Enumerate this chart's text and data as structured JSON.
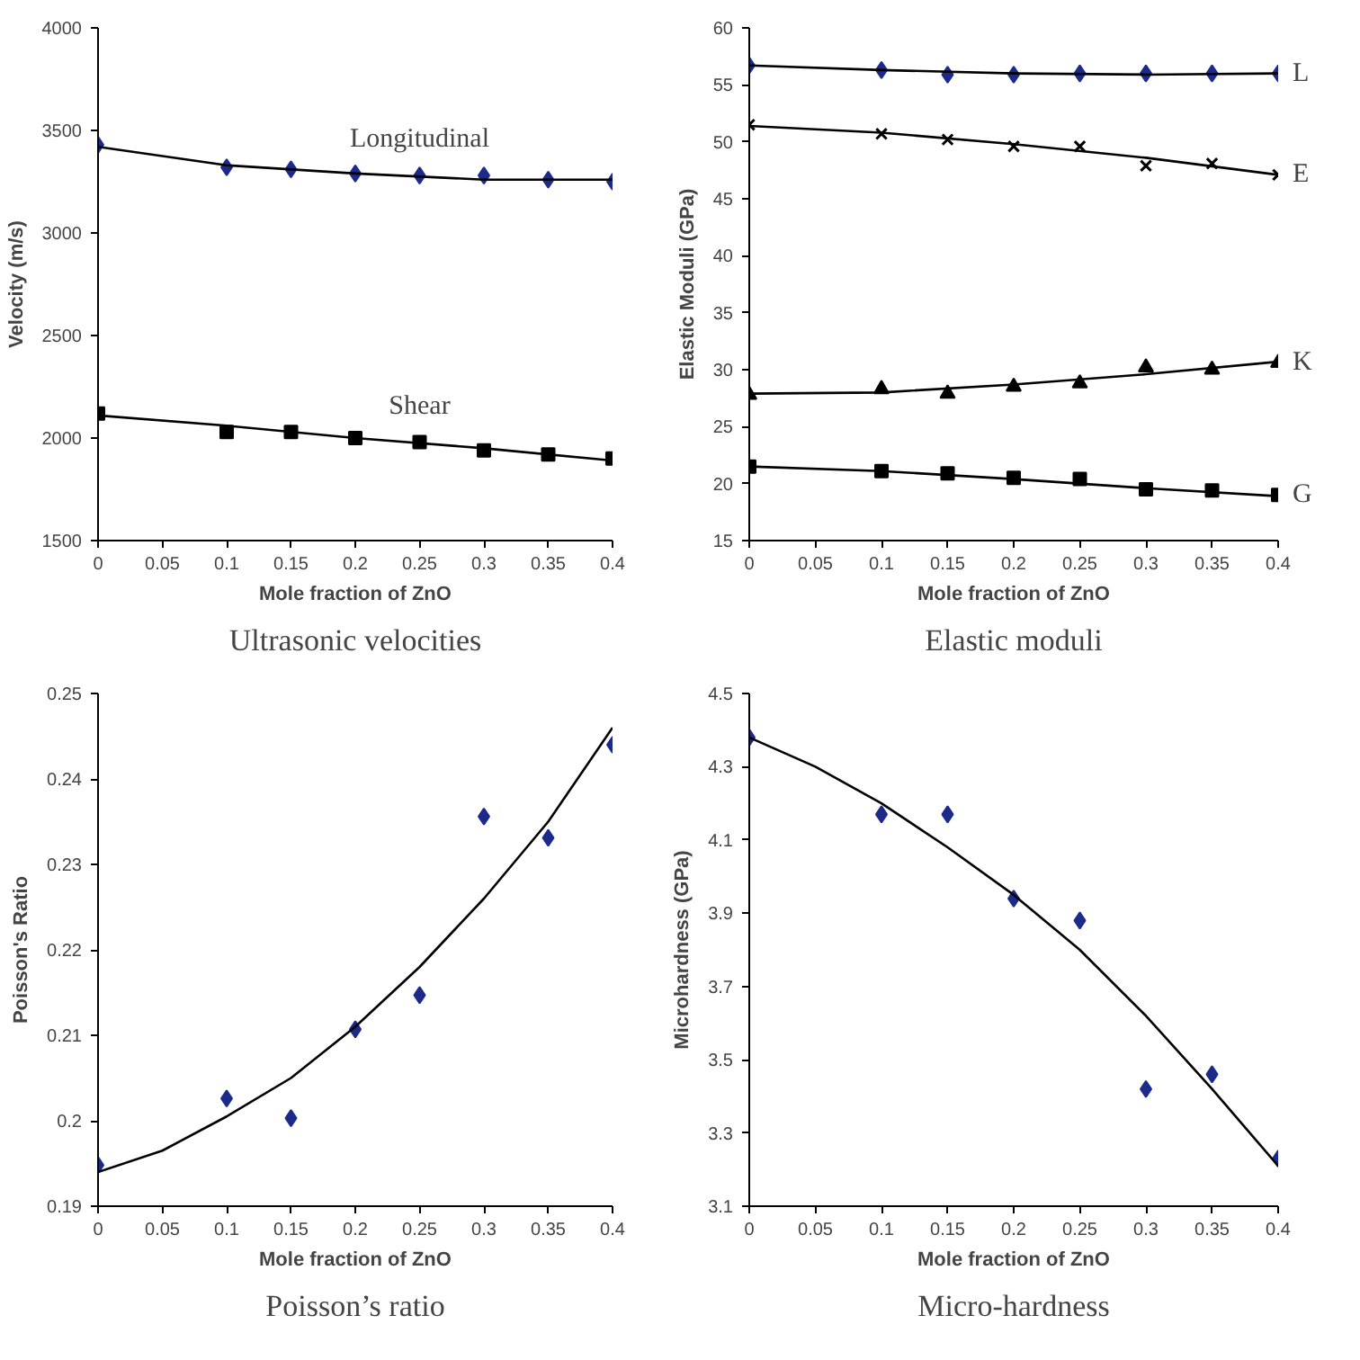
{
  "chart_data": [
    {
      "type": "scatter",
      "title": "Ultrasonic velocities",
      "xlabel": "Mole fraction of ZnO",
      "ylabel": "Velocity (m/s)",
      "x": [
        0,
        0.1,
        0.15,
        0.2,
        0.25,
        0.3,
        0.35,
        0.4
      ],
      "xlim": [
        0,
        0.4
      ],
      "xticks": [
        0,
        0.05,
        0.1,
        0.15,
        0.2,
        0.25,
        0.3,
        0.35,
        0.4
      ],
      "ylim": [
        1500,
        4000
      ],
      "yticks": [
        1500,
        2000,
        2500,
        3000,
        3500,
        4000
      ],
      "grid": false,
      "series": [
        {
          "type": "scatter",
          "name": "Longitudinal",
          "marker": "diamond",
          "color": "#1c2a8a",
          "values": [
            3430,
            3320,
            3310,
            3290,
            3280,
            3280,
            3260,
            3250
          ]
        },
        {
          "type": "line",
          "marker": "none",
          "color": "#000000",
          "x": [
            0,
            0.1,
            0.2,
            0.3,
            0.4
          ],
          "values": [
            3420,
            3330,
            3290,
            3260,
            3260
          ]
        },
        {
          "type": "scatter",
          "name": "Shear",
          "marker": "square",
          "color": "#000000",
          "values": [
            2120,
            2030,
            2030,
            2000,
            1980,
            1940,
            1920,
            1900
          ]
        },
        {
          "type": "line",
          "marker": "none",
          "color": "#000000",
          "x": [
            0,
            0.1,
            0.2,
            0.3,
            0.4
          ],
          "values": [
            2110,
            2060,
            2000,
            1950,
            1890
          ]
        }
      ]
    },
    {
      "type": "scatter",
      "title": "Elastic moduli",
      "xlabel": "Mole fraction of ZnO",
      "ylabel": "Elastic Moduli (GPa)",
      "x": [
        0,
        0.1,
        0.15,
        0.2,
        0.25,
        0.3,
        0.35,
        0.4
      ],
      "xlim": [
        0,
        0.4
      ],
      "xticks": [
        0,
        0.05,
        0.1,
        0.15,
        0.2,
        0.25,
        0.3,
        0.35,
        0.4
      ],
      "ylim": [
        15,
        60
      ],
      "yticks": [
        15,
        20,
        25,
        30,
        35,
        40,
        45,
        50,
        55,
        60
      ],
      "grid": false,
      "series": [
        {
          "type": "scatter",
          "name": "L",
          "marker": "diamond",
          "color": "#1c2a8a",
          "values": [
            56.7,
            56.3,
            55.9,
            55.9,
            56.0,
            56.0,
            56.0,
            56.0
          ]
        },
        {
          "type": "line",
          "marker": "none",
          "color": "#000000",
          "x": [
            0,
            0.1,
            0.2,
            0.3,
            0.4
          ],
          "values": [
            56.7,
            56.3,
            56.0,
            55.9,
            56.0
          ]
        },
        {
          "type": "scatter",
          "name": "E",
          "marker": "cross",
          "color": "#000000",
          "values": [
            51.5,
            50.7,
            50.2,
            49.6,
            49.6,
            47.9,
            48.1,
            47.1
          ]
        },
        {
          "type": "line",
          "marker": "none",
          "color": "#000000",
          "x": [
            0,
            0.1,
            0.2,
            0.3,
            0.4
          ],
          "values": [
            51.4,
            50.8,
            49.8,
            48.6,
            47.1
          ]
        },
        {
          "type": "scatter",
          "name": "K",
          "marker": "triangle",
          "color": "#000000",
          "values": [
            27.8,
            28.3,
            27.9,
            28.5,
            28.8,
            30.2,
            30.0,
            30.6
          ]
        },
        {
          "type": "line",
          "marker": "none",
          "color": "#000000",
          "x": [
            0,
            0.1,
            0.2,
            0.3,
            0.4
          ],
          "values": [
            27.9,
            28.0,
            28.7,
            29.6,
            30.7
          ]
        },
        {
          "type": "scatter",
          "name": "G",
          "marker": "square",
          "color": "#000000",
          "values": [
            21.5,
            21.1,
            20.9,
            20.5,
            20.4,
            19.5,
            19.4,
            19.0
          ]
        },
        {
          "type": "line",
          "marker": "none",
          "color": "#000000",
          "x": [
            0,
            0.1,
            0.2,
            0.3,
            0.4
          ],
          "values": [
            21.5,
            21.1,
            20.4,
            19.6,
            18.9
          ]
        }
      ]
    },
    {
      "type": "scatter",
      "title": "Poisson’s ratio",
      "xlabel": "Mole fraction of ZnO",
      "ylabel": "Poisson's Ratio",
      "x": [
        0,
        0.1,
        0.15,
        0.2,
        0.25,
        0.3,
        0.35,
        0.4
      ],
      "xlim": [
        0,
        0.4
      ],
      "xticks": [
        0,
        0.05,
        0.1,
        0.15,
        0.2,
        0.25,
        0.3,
        0.35,
        0.4
      ],
      "ylim": [
        0.19,
        0.25
      ],
      "yticks": [
        0.19,
        0.2,
        0.21,
        0.22,
        0.23,
        0.24,
        0.25
      ],
      "grid": false,
      "series": [
        {
          "type": "scatter",
          "marker": "diamond",
          "color": "#1c2a8a",
          "values": [
            0.1948,
            0.2026,
            0.2003,
            0.2107,
            0.2147,
            0.2356,
            0.2331,
            0.244
          ]
        },
        {
          "type": "line",
          "marker": "none",
          "color": "#000000",
          "x": [
            0,
            0.05,
            0.1,
            0.15,
            0.2,
            0.25,
            0.3,
            0.35,
            0.4
          ],
          "values": [
            0.194,
            0.1965,
            0.2005,
            0.205,
            0.211,
            0.218,
            0.226,
            0.235,
            0.246
          ]
        }
      ]
    },
    {
      "type": "scatter",
      "title": "Micro-hardness",
      "xlabel": "Mole fraction of ZnO",
      "ylabel": "Microhardness (GPa)",
      "x": [
        0,
        0.1,
        0.15,
        0.2,
        0.25,
        0.3,
        0.35,
        0.4
      ],
      "xlim": [
        0,
        0.4
      ],
      "xticks": [
        0,
        0.05,
        0.1,
        0.15,
        0.2,
        0.25,
        0.3,
        0.35,
        0.4
      ],
      "ylim": [
        3.1,
        4.5
      ],
      "yticks": [
        3.1,
        3.3,
        3.5,
        3.7,
        3.9,
        4.1,
        4.3,
        4.5
      ],
      "grid": false,
      "series": [
        {
          "type": "scatter",
          "marker": "diamond",
          "color": "#1c2a8a",
          "values": [
            4.38,
            4.17,
            4.17,
            3.94,
            3.88,
            3.42,
            3.46,
            3.23
          ]
        },
        {
          "type": "line",
          "marker": "none",
          "color": "#000000",
          "x": [
            0,
            0.05,
            0.1,
            0.15,
            0.2,
            0.25,
            0.3,
            0.35,
            0.4
          ],
          "values": [
            4.38,
            4.3,
            4.2,
            4.08,
            3.95,
            3.8,
            3.62,
            3.42,
            3.21
          ]
        }
      ]
    }
  ]
}
